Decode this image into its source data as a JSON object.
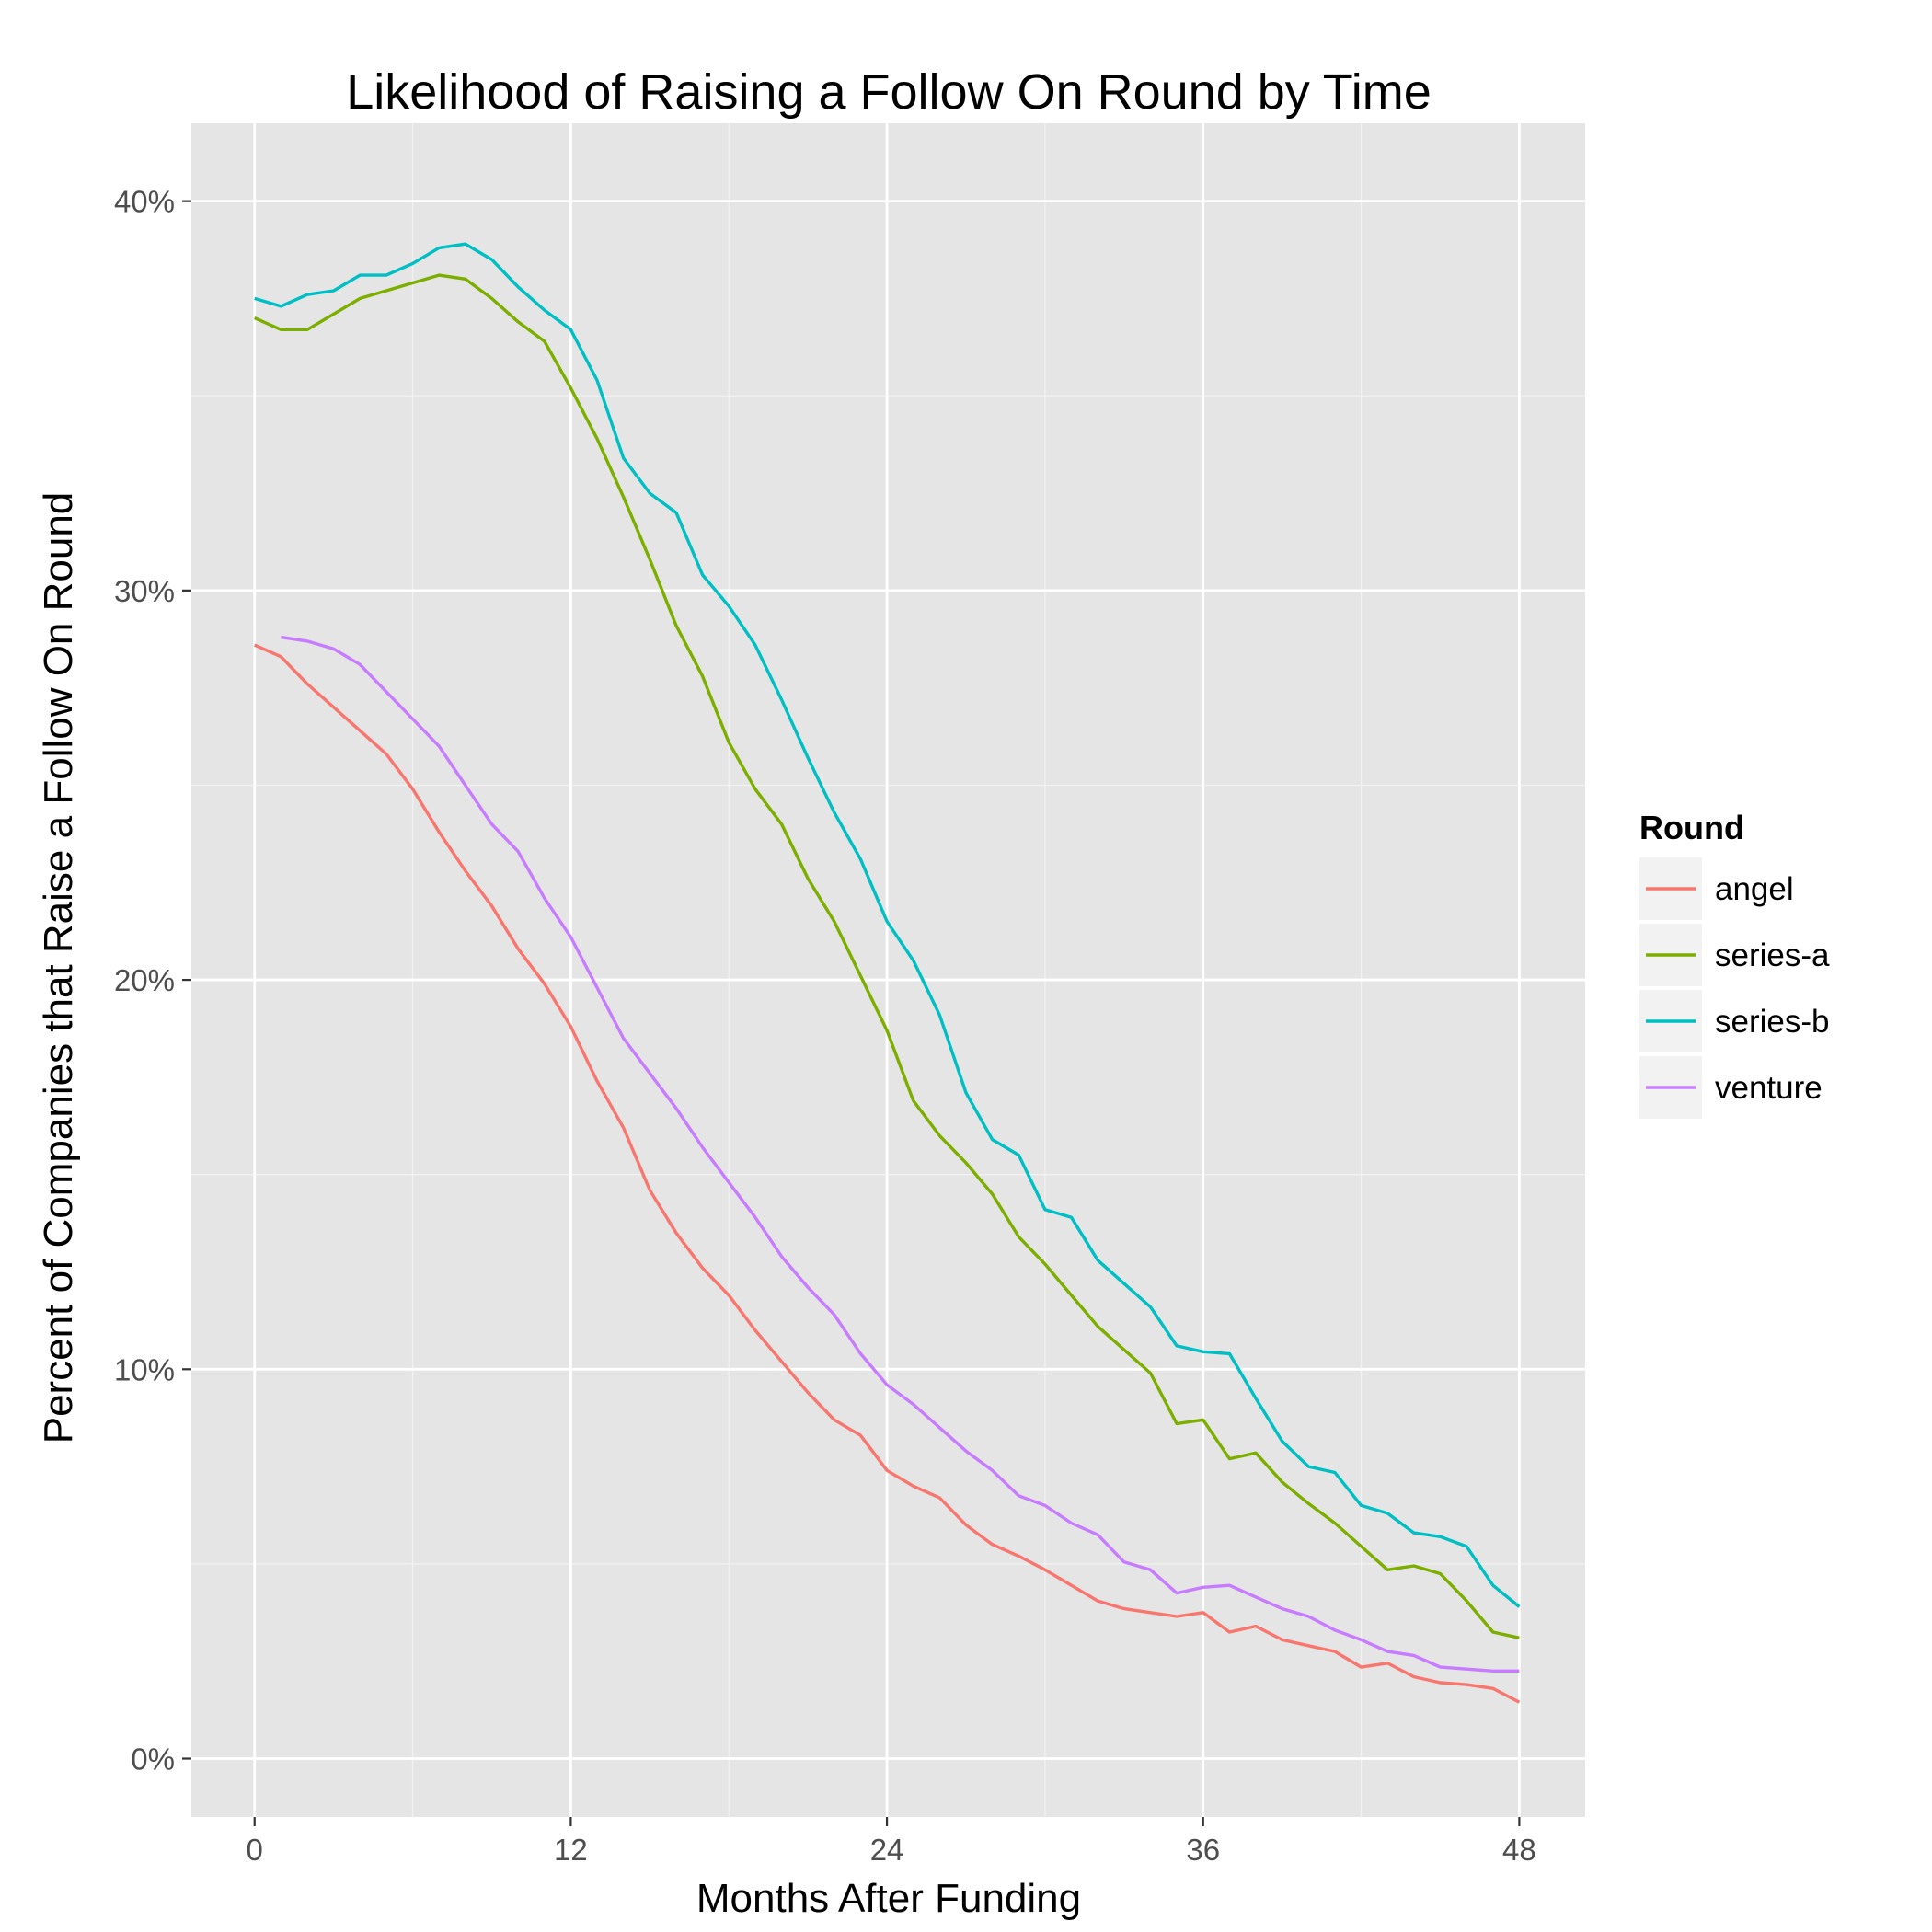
{
  "chart_data": {
    "type": "line",
    "title": "Likelihood of Raising a Follow On Round by Time",
    "xlabel": "Months After Funding",
    "ylabel": "Percent of Companies that Raise a Follow On Round",
    "xlim": [
      -2.4,
      50.5
    ],
    "ylim": [
      -1.5,
      42.0
    ],
    "x_ticks": [
      0,
      12,
      24,
      36,
      48
    ],
    "x_tick_labels": [
      "0",
      "12",
      "24",
      "36",
      "48"
    ],
    "y_ticks": [
      0,
      10,
      20,
      30,
      40
    ],
    "y_tick_labels": [
      "0%",
      "10%",
      "20%",
      "30%",
      "40%"
    ],
    "grid": true,
    "legend": {
      "title": "Round",
      "placement": "right"
    },
    "series": [
      {
        "name": "angel",
        "color": "#F8766D",
        "x": [
          0,
          1,
          2,
          3,
          4,
          5,
          6,
          7,
          8,
          9,
          10,
          11,
          12,
          13,
          14,
          15,
          16,
          17,
          18,
          19,
          20,
          21,
          22,
          23,
          24,
          25,
          26,
          27,
          28,
          29,
          30,
          31,
          32,
          33,
          34,
          35,
          36,
          37,
          38,
          39,
          40,
          41,
          42,
          43,
          44,
          45,
          46,
          47,
          48
        ],
        "values": [
          28.6,
          28.3,
          27.6,
          27.0,
          26.4,
          25.8,
          24.9,
          23.8,
          22.8,
          21.9,
          20.8,
          19.9,
          18.8,
          17.4,
          16.2,
          14.6,
          13.5,
          12.6,
          11.9,
          11.0,
          10.2,
          9.4,
          8.7,
          8.3,
          7.4,
          7.0,
          6.7,
          6.0,
          5.5,
          5.2,
          4.85,
          4.45,
          4.05,
          3.85,
          3.75,
          3.65,
          3.75,
          3.25,
          3.4,
          3.05,
          2.9,
          2.75,
          2.35,
          2.45,
          2.1,
          1.95,
          1.9,
          1.8,
          1.45
        ]
      },
      {
        "name": "series-a",
        "color": "#7CAE00",
        "x": [
          0,
          1,
          2,
          3,
          4,
          5,
          6,
          7,
          8,
          9,
          10,
          11,
          12,
          13,
          14,
          15,
          16,
          17,
          18,
          19,
          20,
          21,
          22,
          23,
          24,
          25,
          26,
          27,
          28,
          29,
          30,
          31,
          32,
          33,
          34,
          35,
          36,
          37,
          38,
          39,
          40,
          41,
          42,
          43,
          44,
          45,
          46,
          47,
          48
        ],
        "values": [
          37.0,
          36.7,
          36.7,
          37.1,
          37.5,
          37.7,
          37.9,
          38.1,
          38.0,
          37.5,
          36.9,
          36.4,
          35.2,
          33.9,
          32.4,
          30.8,
          29.1,
          27.8,
          26.1,
          24.9,
          24.0,
          22.6,
          21.5,
          20.1,
          18.7,
          16.9,
          16.0,
          15.3,
          14.5,
          13.4,
          12.7,
          11.9,
          11.1,
          10.5,
          9.9,
          8.6,
          8.7,
          7.7,
          7.85,
          7.1,
          6.55,
          6.05,
          5.45,
          4.85,
          4.95,
          4.75,
          4.05,
          3.25,
          3.1
        ]
      },
      {
        "name": "series-b",
        "color": "#00BFC4",
        "x": [
          0,
          1,
          2,
          3,
          4,
          5,
          6,
          7,
          8,
          9,
          10,
          11,
          12,
          13,
          14,
          15,
          16,
          17,
          18,
          19,
          20,
          21,
          22,
          23,
          24,
          25,
          26,
          27,
          28,
          29,
          30,
          31,
          32,
          33,
          34,
          35,
          36,
          37,
          38,
          39,
          40,
          41,
          42,
          43,
          44,
          45,
          46,
          47,
          48
        ],
        "values": [
          37.5,
          37.3,
          37.6,
          37.7,
          38.1,
          38.1,
          38.4,
          38.8,
          38.9,
          38.5,
          37.8,
          37.2,
          36.7,
          35.4,
          33.4,
          32.5,
          32.0,
          30.4,
          29.6,
          28.6,
          27.2,
          25.7,
          24.3,
          23.1,
          21.5,
          20.5,
          19.1,
          17.1,
          15.9,
          15.5,
          14.1,
          13.9,
          12.8,
          12.2,
          11.6,
          10.6,
          10.45,
          10.4,
          9.25,
          8.15,
          7.5,
          7.35,
          6.5,
          6.3,
          5.8,
          5.7,
          5.45,
          4.45,
          3.9
        ]
      },
      {
        "name": "venture",
        "color": "#C77CFF",
        "x": [
          1,
          2,
          3,
          4,
          5,
          6,
          7,
          8,
          9,
          10,
          11,
          12,
          13,
          14,
          15,
          16,
          17,
          18,
          19,
          20,
          21,
          22,
          23,
          24,
          25,
          26,
          27,
          28,
          29,
          30,
          31,
          32,
          33,
          34,
          35,
          36,
          37,
          38,
          39,
          40,
          41,
          42,
          43,
          44,
          45,
          46,
          47,
          48
        ],
        "values": [
          28.8,
          28.7,
          28.5,
          28.1,
          27.4,
          26.7,
          26.0,
          25.0,
          24.0,
          23.3,
          22.1,
          21.1,
          19.8,
          18.5,
          17.6,
          16.7,
          15.7,
          14.8,
          13.9,
          12.9,
          12.1,
          11.4,
          10.4,
          9.6,
          9.1,
          8.5,
          7.9,
          7.4,
          6.75,
          6.5,
          6.05,
          5.75,
          5.05,
          4.85,
          4.25,
          4.4,
          4.45,
          4.15,
          3.85,
          3.65,
          3.3,
          3.05,
          2.75,
          2.65,
          2.35,
          2.3,
          2.25,
          2.25
        ]
      }
    ]
  }
}
